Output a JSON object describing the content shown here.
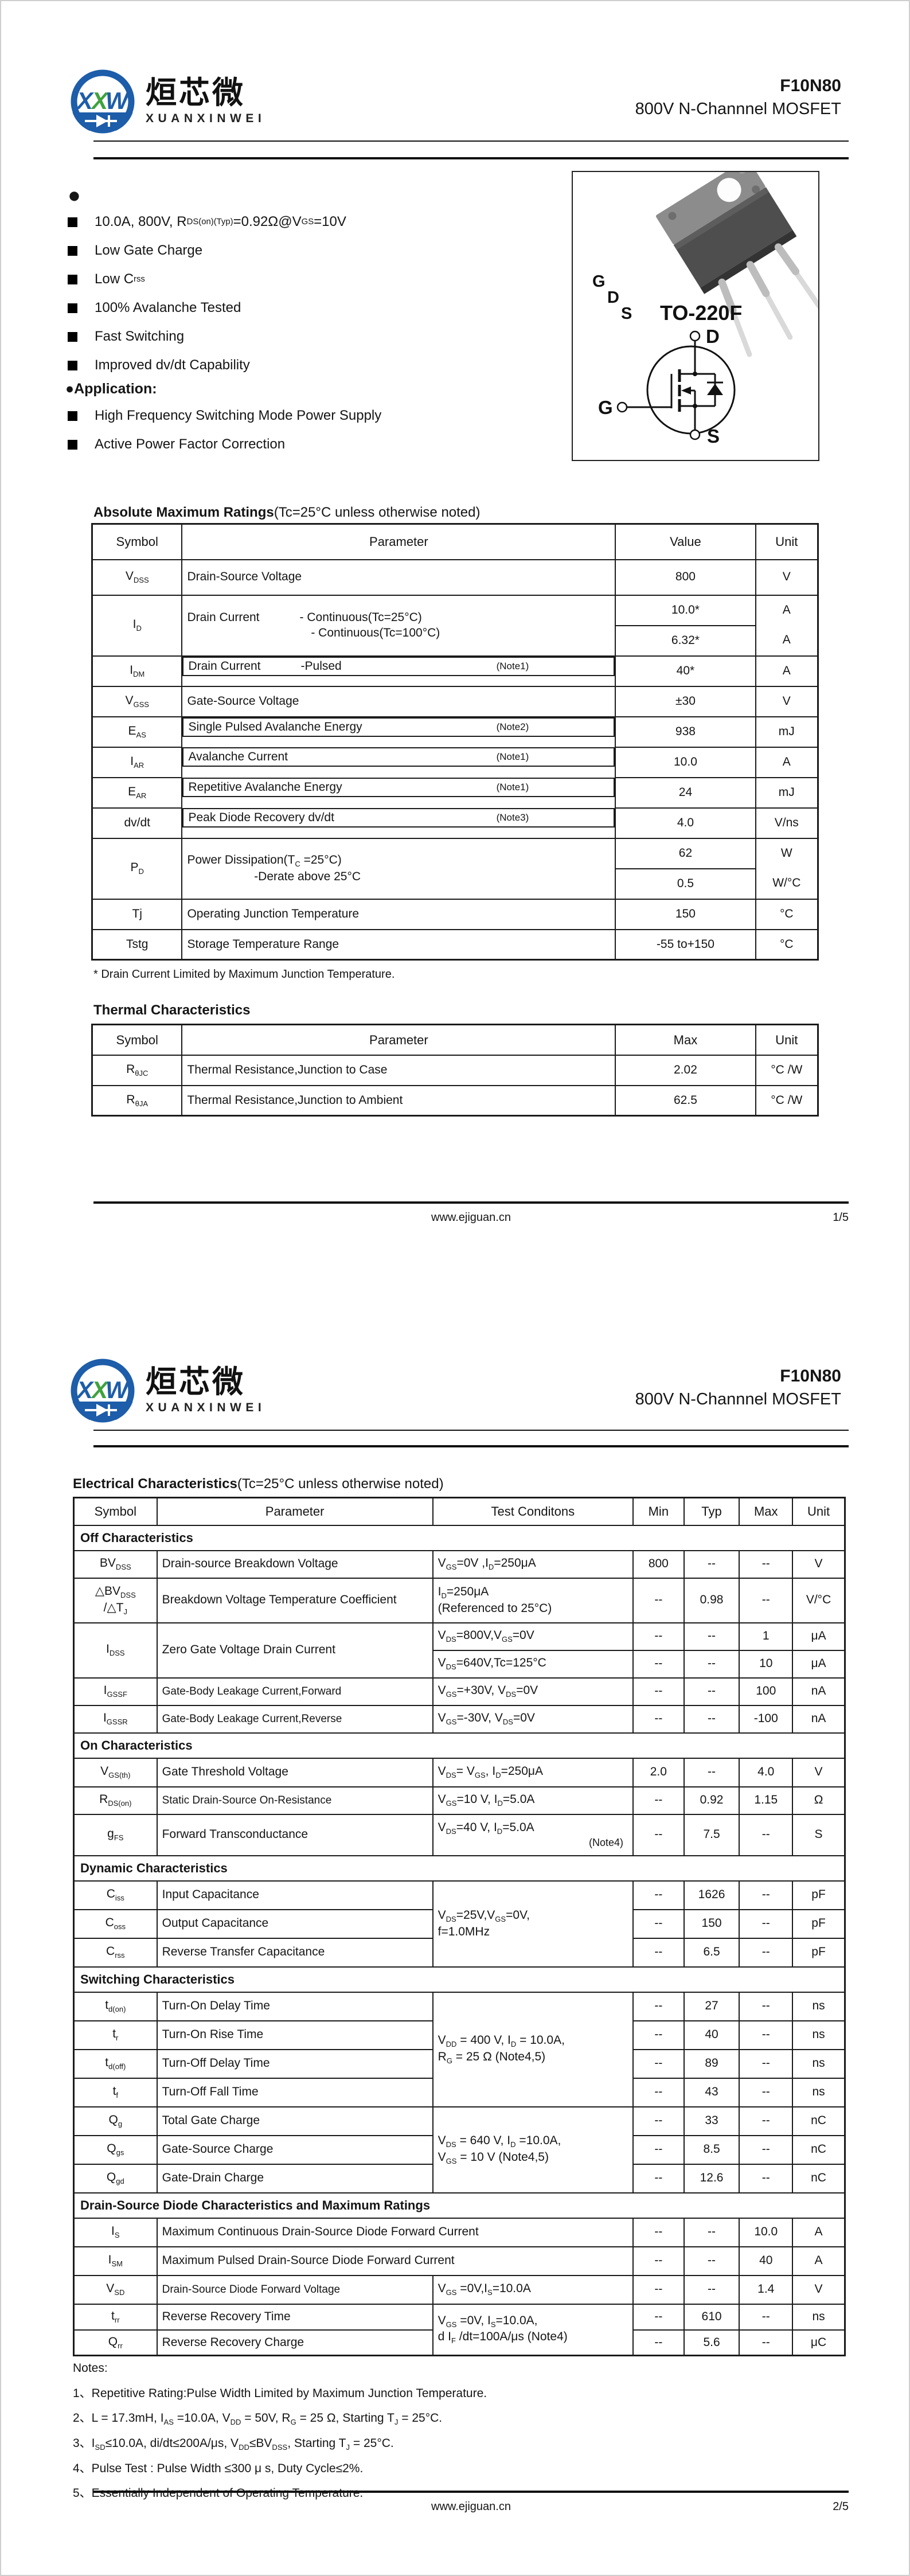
{
  "brand": {
    "cn": "烜芯微",
    "en": "XUANXINWEI",
    "monogram_1": "X",
    "monogram_2": "X",
    "monogram_3": "W",
    "blue": "#1d5da9",
    "green": "#3fa23e"
  },
  "part_number": "F10N80",
  "subtitle": "800V N-Channnel MOSFET",
  "page1": {
    "features_bullet": "●",
    "features": [
      "10.0A, 800V, R~DS(on)(Typ)~ =0.92Ω@V~GS~=10V",
      "Low Gate Charge",
      "Low C~rss~",
      "100% Avalanche Tested",
      "Fast Switching",
      "Improved dv/dt Capability"
    ],
    "application_label": "●Application:",
    "applications": [
      "High Frequency Switching Mode Power Supply",
      "Active Power Factor Correction"
    ],
    "package": {
      "label": "TO-220F",
      "pin_g": "G",
      "pin_d": "D",
      "pin_s": "S",
      "sym_d": "D",
      "sym_g": "G",
      "sym_s": "S"
    },
    "abs_title": "Absolute Maximum Ratings",
    "abs_cond": "(Tc=25°C unless otherwise noted)",
    "abs_table": {
      "cols": [
        12.4,
        59.7,
        19.3,
        8.6
      ],
      "headH": 62,
      "head": [
        "Symbol",
        "Parameter",
        "Value",
        "Unit"
      ],
      "rows": [
        {
          "h": 62,
          "cells": [
            "V~DSS~",
            {
              "t": "Drain-Source Voltage",
              "cls": "l"
            },
            "800",
            "V"
          ]
        },
        {
          "h": 53,
          "cells": [
            {
              "t": "I~D~",
              "rs": 2
            },
            {
              "rs": 2,
              "cls": "l pre",
              "lines": [
                "Drain Current            - Continuous(Tc=25°C)",
                "                                     - Continuous(Tc=100°C)"
              ]
            },
            "10.0*",
            {
              "t": "A",
              "cls": "bh"
            }
          ]
        },
        {
          "h": 53,
          "cells": [
            "6.32*",
            "A"
          ]
        },
        {
          "h": 53,
          "cells": [
            "I~DM~",
            {
              "t": "Drain Current            -Pulsed",
              "note": "(Note1)",
              "cls": "l pre flexnote"
            },
            "40*",
            "A"
          ]
        },
        {
          "h": 53,
          "cells": [
            "V~GSS~",
            {
              "t": "Gate-Source Voltage",
              "cls": "l"
            },
            "±30",
            "V"
          ]
        },
        {
          "h": 53,
          "cells": [
            "E~AS~",
            {
              "t": "Single Pulsed Avalanche Energy",
              "note": "(Note2)",
              "cls": "l flexnote"
            },
            "938",
            "mJ"
          ]
        },
        {
          "h": 53,
          "cells": [
            "I~AR~",
            {
              "t": "Avalanche Current",
              "note": "(Note1)",
              "cls": "l flexnote"
            },
            "10.0",
            "A"
          ]
        },
        {
          "h": 53,
          "cells": [
            "E~AR~",
            {
              "t": "Repetitive Avalanche Energy",
              "note": "(Note1)",
              "cls": "l flexnote"
            },
            "24",
            "mJ"
          ]
        },
        {
          "h": 53,
          "cells": [
            "dv/dt",
            {
              "t": "Peak Diode Recovery dv/dt",
              "note": "(Note3)",
              "cls": "l flexnote"
            },
            "4.0",
            "V/ns"
          ]
        },
        {
          "h": 53,
          "cells": [
            {
              "t": "P~D~",
              "rs": 2
            },
            {
              "rs": 2,
              "cls": "l pre",
              "lines": [
                "Power Dissipation(T~C~ =25°C)",
                "                    -Derate above 25°C"
              ]
            },
            "62",
            {
              "t": "W",
              "cls": "bh"
            }
          ]
        },
        {
          "h": 53,
          "cells": [
            "0.5",
            "W/°C"
          ]
        },
        {
          "h": 53,
          "cells": [
            "Tj",
            {
              "t": "Operating Junction Temperature",
              "cls": "l"
            },
            "150",
            "°C"
          ]
        },
        {
          "h": 53,
          "cells": [
            "Tstg",
            {
              "t": "Storage Temperature Range",
              "cls": "l"
            },
            "-55 to+150",
            "°C"
          ]
        }
      ]
    },
    "abs_footnote": "* Drain Current Limited by Maximum Junction Temperature.",
    "thermal_title": "Thermal Characteristics",
    "thermal_table": {
      "cols": [
        12.4,
        59.7,
        19.3,
        8.6
      ],
      "headH": 53,
      "head": [
        "Symbol",
        "Parameter",
        "Max",
        "Unit"
      ],
      "rows": [
        {
          "h": 53,
          "cells": [
            "R~θJC~",
            {
              "t": "Thermal Resistance,Junction to Case",
              "cls": "l"
            },
            "2.02",
            "°C /W"
          ]
        },
        {
          "h": 53,
          "cells": [
            "R~θJA~",
            {
              "t": "Thermal Resistance,Junction to Ambient",
              "cls": "l"
            },
            "62.5",
            "°C /W"
          ]
        }
      ]
    },
    "footer": {
      "site": "www.ejiguan.cn",
      "page": "1/5"
    }
  },
  "page2": {
    "elec_title": "Electrical Characteristics",
    "elec_cond": "(Tc=25°C unless otherwise noted)",
    "elec_table": {
      "cols": [
        10.8,
        35.8,
        26.0,
        6.6,
        7.2,
        6.9,
        6.8
      ],
      "headH": 48,
      "head": [
        "Symbol",
        "Parameter",
        "Test Conditons",
        "Min",
        "Typ",
        "Max",
        "Unit"
      ],
      "rows": [
        {
          "h": 44,
          "cells": [
            {
              "t": "Off Characteristics",
              "cs": 7,
              "cls": "sec"
            }
          ]
        },
        {
          "h": 48,
          "cells": [
            "BV~DSS~",
            {
              "t": "Drain-source Breakdown Voltage",
              "cls": "l"
            },
            {
              "t": "V~GS~=0V ,I~D~=250μA",
              "cls": "l"
            },
            "800",
            "--",
            "--",
            "V"
          ]
        },
        {
          "h": 78,
          "cells": [
            {
              "lines": [
                "△BV~DSS~",
                "/△T~J~"
              ]
            },
            {
              "t": "Breakdown Voltage Temperature Coefficient",
              "cls": "l"
            },
            {
              "lines": [
                "I~D~=250μA",
                "(Referenced to 25°C)"
              ],
              "cls": "l"
            },
            "--",
            "0.98",
            "--",
            "V/°C"
          ]
        },
        {
          "h": 48,
          "cells": [
            {
              "t": "I~DSS~",
              "rs": 2
            },
            {
              "t": "Zero Gate Voltage Drain Current",
              "rs": 2,
              "cls": "l"
            },
            {
              "t": "V~DS~=800V,V~GS~=0V",
              "cls": "l"
            },
            "--",
            "--",
            "1",
            "μA"
          ]
        },
        {
          "h": 48,
          "cells": [
            {
              "t": "V~DS~=640V,Tc=125°C",
              "cls": "l"
            },
            "--",
            "--",
            "10",
            "μA"
          ]
        },
        {
          "h": 48,
          "cells": [
            "I~GSSF~",
            {
              "t": "Gate-Body Leakage Current,Forward",
              "cls": "l sm"
            },
            {
              "t": "V~GS~=+30V, V~DS~=0V",
              "cls": "l"
            },
            "--",
            "--",
            "100",
            "nA"
          ]
        },
        {
          "h": 48,
          "cells": [
            "I~GSSR~",
            {
              "t": "Gate-Body Leakage Current,Reverse",
              "cls": "l sm"
            },
            {
              "t": "V~GS~=-30V, V~DS~=0V",
              "cls": "l"
            },
            "--",
            "--",
            "-100",
            "nA"
          ]
        },
        {
          "h": 44,
          "cells": [
            {
              "t": "On Characteristics",
              "cs": 7,
              "cls": "sec"
            }
          ]
        },
        {
          "h": 50,
          "cells": [
            "V~GS(th)~",
            {
              "t": "Gate Threshold Voltage",
              "cls": "l"
            },
            {
              "t": "V~DS~= V~GS~, I~D~=250μA",
              "cls": "l"
            },
            "2.0",
            "--",
            "4.0",
            "V"
          ]
        },
        {
          "h": 48,
          "cells": [
            "R~DS(on)~",
            {
              "t": "Static Drain-Source On-Resistance",
              "cls": "l sm"
            },
            {
              "t": "V~GS~=10 V, I~D~=5.0A",
              "cls": "l"
            },
            "--",
            "0.92",
            "1.15",
            "Ω"
          ]
        },
        {
          "h": 72,
          "cells": [
            "g~FS~",
            {
              "t": "Forward Transconductance",
              "cls": "l"
            },
            {
              "t": "V~DS~=40 V, I~D~=5.0A",
              "noteline": "(Note4)",
              "cls": "l"
            },
            "--",
            "7.5",
            "--",
            "S"
          ]
        },
        {
          "h": 44,
          "cells": [
            {
              "t": "Dynamic Characteristics",
              "cs": 7,
              "cls": "sec"
            }
          ]
        },
        {
          "h": 50,
          "cells": [
            "C~iss~",
            {
              "t": "Input Capacitance",
              "cls": "l"
            },
            {
              "lines": [
                "V~DS~=25V,V~GS~=0V,",
                "f=1.0MHz"
              ],
              "rs": 3,
              "cls": "l"
            },
            "--",
            "1626",
            "--",
            "pF"
          ]
        },
        {
          "h": 50,
          "cells": [
            "C~oss~",
            {
              "t": "Output Capacitance",
              "cls": "l"
            },
            "--",
            "150",
            "--",
            "pF"
          ]
        },
        {
          "h": 50,
          "cells": [
            "C~rss~",
            {
              "t": "Reverse Transfer Capacitance",
              "cls": "l"
            },
            "--",
            "6.5",
            "--",
            "pF"
          ]
        },
        {
          "h": 44,
          "cells": [
            {
              "t": "Switching Characteristics",
              "cs": 7,
              "cls": "sec"
            }
          ]
        },
        {
          "h": 50,
          "cells": [
            "t~d(on)~",
            {
              "t": "Turn-On Delay Time",
              "cls": "l"
            },
            {
              "lines": [
                "V~DD~ = 400 V, I~D~ = 10.0A,",
                "R~G~ = 25 Ω    (Note4,5)"
              ],
              "rs": 4,
              "cls": "l"
            },
            "--",
            "27",
            "--",
            "ns"
          ]
        },
        {
          "h": 50,
          "cells": [
            "t~r~",
            {
              "t": "Turn-On Rise Time",
              "cls": "l"
            },
            "--",
            "40",
            "--",
            "ns"
          ]
        },
        {
          "h": 50,
          "cells": [
            "t~d(off)~",
            {
              "t": "Turn-Off Delay Time",
              "cls": "l"
            },
            "--",
            "89",
            "--",
            "ns"
          ]
        },
        {
          "h": 50,
          "cells": [
            "t~f~",
            {
              "t": "Turn-Off Fall Time",
              "cls": "l"
            },
            "--",
            "43",
            "--",
            "ns"
          ]
        },
        {
          "h": 50,
          "cells": [
            "Q~g~",
            {
              "t": "Total Gate Charge",
              "cls": "l"
            },
            {
              "lines": [
                "V~DS~ = 640 V, I~D~ =10.0A,",
                "V~GS~ = 10 V   (Note4,5)"
              ],
              "rs": 3,
              "cls": "l"
            },
            "--",
            "33",
            "--",
            "nC"
          ]
        },
        {
          "h": 50,
          "cells": [
            "Q~gs~",
            {
              "t": "Gate-Source Charge",
              "cls": "l"
            },
            "--",
            "8.5",
            "--",
            "nC"
          ]
        },
        {
          "h": 50,
          "cells": [
            "Q~gd~",
            {
              "t": "Gate-Drain Charge",
              "cls": "l"
            },
            "--",
            "12.6",
            "--",
            "nC"
          ]
        },
        {
          "h": 44,
          "cells": [
            {
              "t": "Drain-Source Diode Characteristics and Maximum Ratings",
              "cs": 7,
              "cls": "sec"
            }
          ]
        },
        {
          "h": 50,
          "cells": [
            "I~S~",
            {
              "t": "Maximum Continuous Drain-Source Diode Forward Current",
              "cs": 2,
              "cls": "l"
            },
            "--",
            "--",
            "10.0",
            "A"
          ]
        },
        {
          "h": 50,
          "cells": [
            "I~SM~",
            {
              "t": "Maximum Pulsed Drain-Source Diode Forward Current",
              "cs": 2,
              "cls": "l"
            },
            "--",
            "--",
            "40",
            "A"
          ]
        },
        {
          "h": 50,
          "cells": [
            "V~SD~",
            {
              "t": "Drain-Source Diode Forward Voltage",
              "cls": "l sm"
            },
            {
              "t": "V~GS~ =0V,I~S~=10.0A",
              "cls": "l"
            },
            "--",
            "--",
            "1.4",
            "V"
          ]
        },
        {
          "h": 45,
          "cells": [
            "t~rr~",
            {
              "t": "Reverse Recovery Time",
              "cls": "l"
            },
            {
              "lines": [
                "V~GS~ =0V, I~S~=10.0A,",
                "d I~F~ /dt=100A/μs (Note4)"
              ],
              "rs": 2,
              "cls": "l"
            },
            "--",
            "610",
            "--",
            "ns"
          ]
        },
        {
          "h": 45,
          "cells": [
            "Q~rr~",
            {
              "t": "Reverse Recovery Charge",
              "cls": "l"
            },
            "--",
            "5.6",
            "--",
            "μC"
          ]
        }
      ]
    },
    "notes_label": "Notes:",
    "notes": [
      "1、Repetitive Rating:Pulse Width Limited by Maximum Junction Temperature.",
      "2、L = 17.3mH, I~AS~ =10.0A, V~DD~ = 50V, R~G~ = 25 Ω, Starting T~J~ = 25°C.",
      "3、I~SD~≤10.0A, di/dt≤200A/μs, V~DD~≤BV~DSS~, Starting T~J~ = 25°C.",
      "4、Pulse Test : Pulse Width ≤300 μ s, Duty Cycle≤2%.",
      "5、Essentially Independent of Operating Temperature."
    ],
    "footer": {
      "site": "www.ejiguan.cn",
      "page": "2/5"
    }
  }
}
